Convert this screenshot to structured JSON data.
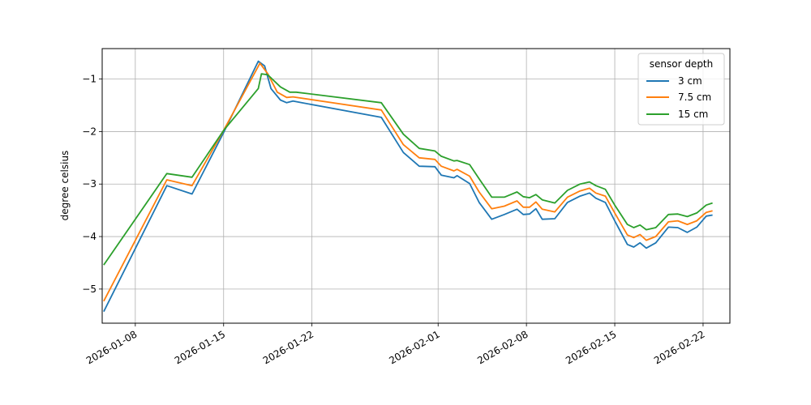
{
  "chart_data": {
    "type": "line",
    "title": "",
    "xlabel": "",
    "ylabel": "degree celsius",
    "ylim": [
      -5.65,
      -0.42
    ],
    "xlim": [
      "2026-01-05T09:00",
      "2026-02-24T03:00"
    ],
    "grid": true,
    "legend": {
      "title": "sensor depth",
      "position": "upper right"
    },
    "x_ticks": [
      "2026-01-08",
      "2026-01-15",
      "2026-01-22",
      "2026-02-01",
      "2026-02-08",
      "2026-02-15",
      "2026-02-22"
    ],
    "y_ticks": [
      -5,
      -4,
      -3,
      -2,
      -1
    ],
    "y_tick_labels": [
      "−5",
      "−4",
      "−3",
      "−2",
      "−1"
    ],
    "series": [
      {
        "name": "3 cm",
        "color": "#1f77b4",
        "points": [
          [
            "2026-01-05T12:00",
            -5.43
          ],
          [
            "2026-01-10T12:00",
            -3.03
          ],
          [
            "2026-01-12T12:00",
            -3.19
          ],
          [
            "2026-01-15T00:00",
            -2.02
          ],
          [
            "2026-01-17T18:00",
            -0.66
          ],
          [
            "2026-01-18T06:00",
            -0.75
          ],
          [
            "2026-01-18T18:00",
            -1.18
          ],
          [
            "2026-01-19T12:00",
            -1.4
          ],
          [
            "2026-01-20T00:00",
            -1.45
          ],
          [
            "2026-01-20T12:00",
            -1.42
          ],
          [
            "2026-01-27T12:00",
            -1.73
          ],
          [
            "2026-01-29T06:00",
            -2.4
          ],
          [
            "2026-01-30T12:00",
            -2.66
          ],
          [
            "2026-01-31T18:00",
            -2.67
          ],
          [
            "2026-02-01T06:00",
            -2.83
          ],
          [
            "2026-02-02T06:00",
            -2.88
          ],
          [
            "2026-02-02T12:00",
            -2.84
          ],
          [
            "2026-02-03T12:00",
            -2.99
          ],
          [
            "2026-02-04T06:00",
            -3.35
          ],
          [
            "2026-02-05T06:00",
            -3.67
          ],
          [
            "2026-02-06T06:00",
            -3.58
          ],
          [
            "2026-02-07T06:00",
            -3.48
          ],
          [
            "2026-02-07T18:00",
            -3.58
          ],
          [
            "2026-02-08T06:00",
            -3.57
          ],
          [
            "2026-02-08T18:00",
            -3.47
          ],
          [
            "2026-02-09T06:00",
            -3.67
          ],
          [
            "2026-02-10T06:00",
            -3.66
          ],
          [
            "2026-02-11T06:00",
            -3.35
          ],
          [
            "2026-02-12T06:00",
            -3.23
          ],
          [
            "2026-02-13T00:00",
            -3.17
          ],
          [
            "2026-02-13T12:00",
            -3.27
          ],
          [
            "2026-02-14T06:00",
            -3.35
          ],
          [
            "2026-02-15T00:00",
            -3.7
          ],
          [
            "2026-02-16T00:00",
            -4.15
          ],
          [
            "2026-02-16T12:00",
            -4.2
          ],
          [
            "2026-02-17T00:00",
            -4.12
          ],
          [
            "2026-02-17T12:00",
            -4.22
          ],
          [
            "2026-02-18T06:00",
            -4.12
          ],
          [
            "2026-02-19T06:00",
            -3.82
          ],
          [
            "2026-02-20T00:00",
            -3.83
          ],
          [
            "2026-02-20T18:00",
            -3.92
          ],
          [
            "2026-02-21T12:00",
            -3.82
          ],
          [
            "2026-02-22T06:00",
            -3.61
          ],
          [
            "2026-02-22T18:00",
            -3.59
          ]
        ]
      },
      {
        "name": "7.5 cm",
        "color": "#ff7f0e",
        "points": [
          [
            "2026-01-05T12:00",
            -5.23
          ],
          [
            "2026-01-10T12:00",
            -2.92
          ],
          [
            "2026-01-12T12:00",
            -3.03
          ],
          [
            "2026-01-15T00:00",
            -1.98
          ],
          [
            "2026-01-17T21:00",
            -0.7
          ],
          [
            "2026-01-18T12:00",
            -0.9
          ],
          [
            "2026-01-19T06:00",
            -1.25
          ],
          [
            "2026-01-20T00:00",
            -1.35
          ],
          [
            "2026-01-20T12:00",
            -1.34
          ],
          [
            "2026-01-27T12:00",
            -1.59
          ],
          [
            "2026-01-29T06:00",
            -2.25
          ],
          [
            "2026-01-30T12:00",
            -2.5
          ],
          [
            "2026-01-31T18:00",
            -2.53
          ],
          [
            "2026-02-01T06:00",
            -2.66
          ],
          [
            "2026-02-02T06:00",
            -2.75
          ],
          [
            "2026-02-02T12:00",
            -2.72
          ],
          [
            "2026-02-03T12:00",
            -2.85
          ],
          [
            "2026-02-04T06:00",
            -3.15
          ],
          [
            "2026-02-05T06:00",
            -3.47
          ],
          [
            "2026-02-06T06:00",
            -3.42
          ],
          [
            "2026-02-07T06:00",
            -3.32
          ],
          [
            "2026-02-07T18:00",
            -3.44
          ],
          [
            "2026-02-08T06:00",
            -3.44
          ],
          [
            "2026-02-08T18:00",
            -3.34
          ],
          [
            "2026-02-09T06:00",
            -3.48
          ],
          [
            "2026-02-10T06:00",
            -3.53
          ],
          [
            "2026-02-11T06:00",
            -3.25
          ],
          [
            "2026-02-12T06:00",
            -3.13
          ],
          [
            "2026-02-13T00:00",
            -3.08
          ],
          [
            "2026-02-13T12:00",
            -3.17
          ],
          [
            "2026-02-14T06:00",
            -3.23
          ],
          [
            "2026-02-15T00:00",
            -3.55
          ],
          [
            "2026-02-16T00:00",
            -3.97
          ],
          [
            "2026-02-16T12:00",
            -4.02
          ],
          [
            "2026-02-17T00:00",
            -3.96
          ],
          [
            "2026-02-17T12:00",
            -4.07
          ],
          [
            "2026-02-18T06:00",
            -4.0
          ],
          [
            "2026-02-19T06:00",
            -3.72
          ],
          [
            "2026-02-20T00:00",
            -3.7
          ],
          [
            "2026-02-20T18:00",
            -3.77
          ],
          [
            "2026-02-21T12:00",
            -3.7
          ],
          [
            "2026-02-22T06:00",
            -3.54
          ],
          [
            "2026-02-22T18:00",
            -3.51
          ]
        ]
      },
      {
        "name": "15 cm",
        "color": "#2ca02c",
        "points": [
          [
            "2026-01-05T12:00",
            -4.54
          ],
          [
            "2026-01-10T12:00",
            -2.8
          ],
          [
            "2026-01-12T12:00",
            -2.87
          ],
          [
            "2026-01-15T00:00",
            -1.98
          ],
          [
            "2026-01-17T18:00",
            -1.18
          ],
          [
            "2026-01-18T00:00",
            -0.9
          ],
          [
            "2026-01-18T12:00",
            -0.92
          ],
          [
            "2026-01-19T12:00",
            -1.15
          ],
          [
            "2026-01-20T06:00",
            -1.25
          ],
          [
            "2026-01-20T18:00",
            -1.25
          ],
          [
            "2026-01-27T12:00",
            -1.45
          ],
          [
            "2026-01-29T06:00",
            -2.05
          ],
          [
            "2026-01-30T12:00",
            -2.32
          ],
          [
            "2026-01-31T18:00",
            -2.37
          ],
          [
            "2026-02-01T06:00",
            -2.47
          ],
          [
            "2026-02-02T06:00",
            -2.56
          ],
          [
            "2026-02-02T12:00",
            -2.55
          ],
          [
            "2026-02-03T12:00",
            -2.63
          ],
          [
            "2026-02-04T06:00",
            -2.9
          ],
          [
            "2026-02-05T06:00",
            -3.25
          ],
          [
            "2026-02-06T06:00",
            -3.25
          ],
          [
            "2026-02-07T06:00",
            -3.15
          ],
          [
            "2026-02-07T18:00",
            -3.24
          ],
          [
            "2026-02-08T06:00",
            -3.26
          ],
          [
            "2026-02-08T18:00",
            -3.2
          ],
          [
            "2026-02-09T06:00",
            -3.3
          ],
          [
            "2026-02-10T06:00",
            -3.36
          ],
          [
            "2026-02-11T06:00",
            -3.12
          ],
          [
            "2026-02-12T06:00",
            -3.0
          ],
          [
            "2026-02-13T00:00",
            -2.96
          ],
          [
            "2026-02-13T12:00",
            -3.03
          ],
          [
            "2026-02-14T06:00",
            -3.1
          ],
          [
            "2026-02-15T00:00",
            -3.4
          ],
          [
            "2026-02-16T00:00",
            -3.77
          ],
          [
            "2026-02-16T12:00",
            -3.83
          ],
          [
            "2026-02-17T00:00",
            -3.78
          ],
          [
            "2026-02-17T12:00",
            -3.87
          ],
          [
            "2026-02-18T06:00",
            -3.83
          ],
          [
            "2026-02-19T06:00",
            -3.58
          ],
          [
            "2026-02-20T00:00",
            -3.57
          ],
          [
            "2026-02-20T18:00",
            -3.62
          ],
          [
            "2026-02-21T12:00",
            -3.55
          ],
          [
            "2026-02-22T06:00",
            -3.4
          ],
          [
            "2026-02-22T18:00",
            -3.36
          ]
        ]
      }
    ]
  }
}
